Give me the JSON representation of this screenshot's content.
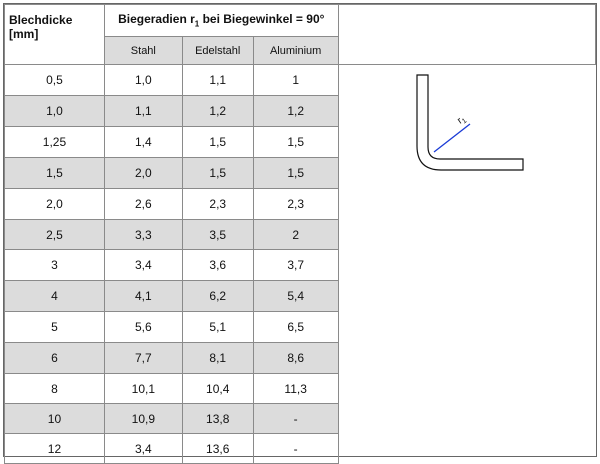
{
  "header": {
    "thickness_label": "Blechdicke [mm]",
    "radius_label_prefix": "Biegeradien r",
    "radius_label_sub": "1",
    "radius_label_suffix": " bei Biegewinkel = 90°",
    "columns": [
      "Stahl",
      "Edelstahl",
      "Aluminium"
    ]
  },
  "rows": [
    {
      "t": "0,5",
      "stahl": "1,0",
      "edelstahl": "1,1",
      "aluminium": "1"
    },
    {
      "t": "1,0",
      "stahl": "1,1",
      "edelstahl": "1,2",
      "aluminium": "1,2"
    },
    {
      "t": "1,25",
      "stahl": "1,4",
      "edelstahl": "1,5",
      "aluminium": "1,5"
    },
    {
      "t": "1,5",
      "stahl": "2,0",
      "edelstahl": "1,5",
      "aluminium": "1,5"
    },
    {
      "t": "2,0",
      "stahl": "2,6",
      "edelstahl": "2,3",
      "aluminium": "2,3"
    },
    {
      "t": "2,5",
      "stahl": "3,3",
      "edelstahl": "3,5",
      "aluminium": "2"
    },
    {
      "t": "3",
      "stahl": "3,4",
      "edelstahl": "3,6",
      "aluminium": "3,7"
    },
    {
      "t": "4",
      "stahl": "4,1",
      "edelstahl": "6,2",
      "aluminium": "5,4"
    },
    {
      "t": "5",
      "stahl": "5,6",
      "edelstahl": "5,1",
      "aluminium": "6,5"
    },
    {
      "t": "6",
      "stahl": "7,7",
      "edelstahl": "8,1",
      "aluminium": "8,6"
    },
    {
      "t": "8",
      "stahl": "10,1",
      "edelstahl": "10,4",
      "aluminium": "11,3"
    },
    {
      "t": "10",
      "stahl": "10,9",
      "edelstahl": "13,8",
      "aluminium": "-"
    },
    {
      "t": "12",
      "stahl": "3,4",
      "edelstahl": "13,6",
      "aluminium": "-"
    }
  ],
  "diagram": {
    "radius_label": "r",
    "radius_label_sub": "1",
    "accent_color": "#1a3bd6"
  },
  "colors": {
    "row_alt": "#dcdcdc",
    "border": "#8a8a8a"
  }
}
